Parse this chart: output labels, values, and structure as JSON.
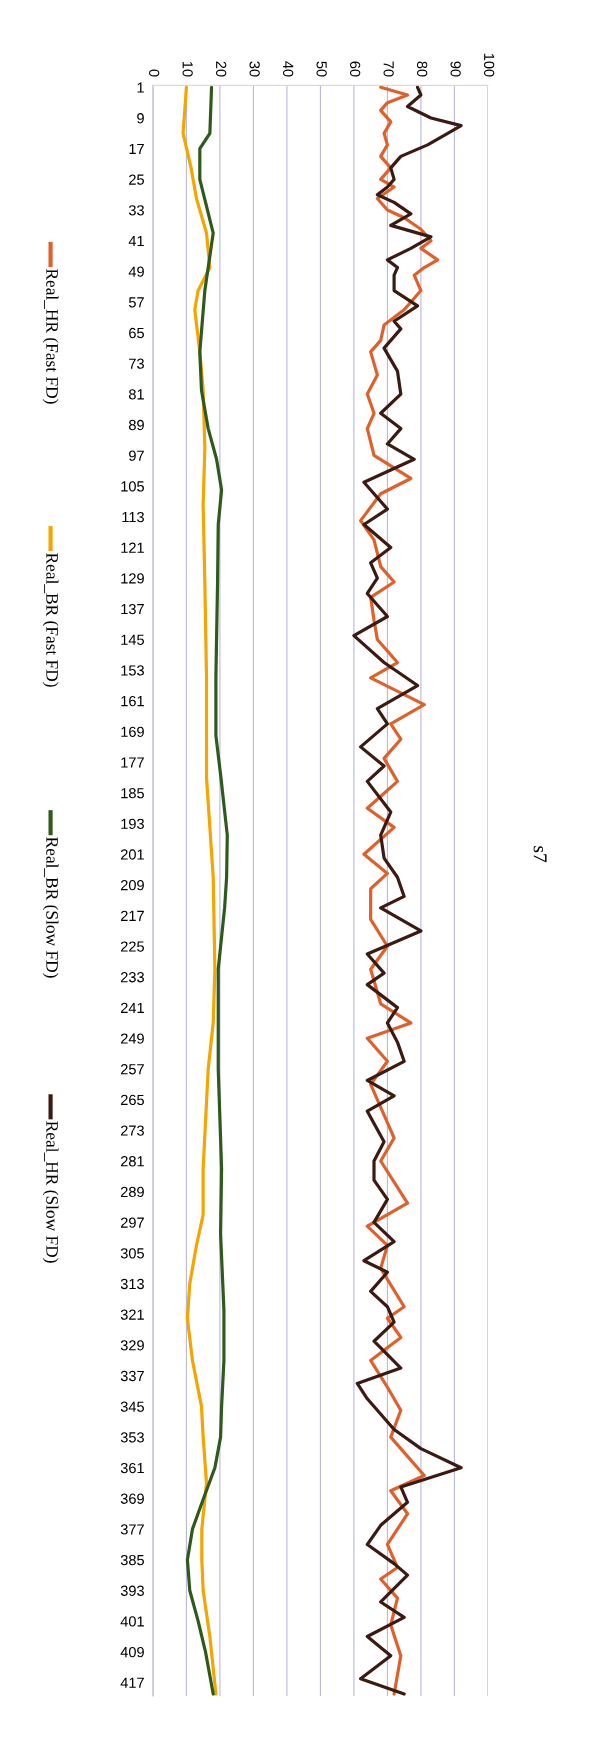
{
  "chart_data": {
    "type": "line",
    "title": "s7",
    "orientation": "horizontal",
    "ylim": [
      420.5,
      0.5
    ],
    "yticks": [
      1,
      9,
      17,
      25,
      33,
      41,
      49,
      57,
      65,
      73,
      81,
      89,
      97,
      105,
      113,
      121,
      129,
      137,
      145,
      153,
      161,
      169,
      177,
      185,
      193,
      201,
      209,
      217,
      225,
      233,
      241,
      249,
      257,
      265,
      273,
      281,
      289,
      297,
      305,
      313,
      321,
      329,
      337,
      345,
      353,
      361,
      369,
      377,
      385,
      393,
      401,
      409,
      417
    ],
    "xlim": [
      0,
      100
    ],
    "xticks": [
      0,
      10,
      20,
      30,
      40,
      50,
      60,
      70,
      80,
      90,
      100
    ],
    "grid": "x",
    "legend": "left",
    "series": [
      {
        "name": "Real_HR (Fast FD)",
        "color": "#e0602a",
        "x": [
          1,
          3,
          5,
          7,
          10,
          13,
          16,
          19,
          22,
          25,
          27,
          30,
          33,
          35,
          38,
          41,
          43,
          46,
          48,
          50,
          54,
          59,
          63,
          67,
          70,
          76,
          81,
          86,
          90,
          97,
          103,
          107,
          114,
          119,
          126,
          130,
          134,
          140,
          145,
          151,
          155,
          162,
          167,
          171,
          176,
          182,
          189,
          194,
          201,
          206,
          210,
          218,
          225,
          231,
          240,
          245,
          249,
          255,
          261,
          271,
          275,
          281,
          292,
          298,
          303,
          309,
          319,
          322,
          327,
          333,
          340,
          346,
          353,
          363,
          367,
          373,
          381,
          387,
          390,
          395,
          402,
          410,
          420
        ],
        "values": [
          68,
          76,
          70,
          68,
          71,
          69,
          70,
          68,
          71,
          68,
          72,
          67,
          70,
          75,
          80,
          83,
          80,
          85,
          81,
          78,
          80,
          75,
          69,
          68,
          65,
          67,
          64,
          66,
          64,
          66,
          77,
          68,
          62,
          66,
          68,
          72,
          65,
          66,
          67,
          73,
          65,
          81,
          71,
          74,
          69,
          73,
          64,
          72,
          63,
          70,
          65,
          65,
          70,
          65,
          68,
          77,
          64,
          70,
          65,
          70,
          72,
          68,
          76,
          64,
          70,
          68,
          75,
          70,
          74,
          65,
          70,
          74,
          71,
          81,
          71,
          76,
          70,
          73,
          68,
          73,
          71,
          74,
          72
        ]
      },
      {
        "name": "Real_BR (Fast FD)",
        "color": "#f5a500",
        "x": [
          1,
          13,
          22,
          30,
          39,
          48,
          54,
          59,
          70,
          80,
          95,
          110,
          130,
          155,
          181,
          207,
          231,
          245,
          257,
          283,
          295,
          303,
          313,
          322,
          333,
          345,
          353,
          365,
          377,
          385,
          393,
          405,
          420
        ],
        "values": [
          10,
          9,
          11.4,
          13,
          16,
          17,
          13.5,
          12.5,
          14,
          15,
          15.5,
          15,
          15.5,
          16,
          16,
          18,
          18.5,
          18,
          16.5,
          15,
          15,
          13,
          11,
          10.3,
          11.8,
          14.5,
          15,
          16,
          14.6,
          14.6,
          15,
          17,
          18.8
        ]
      },
      {
        "name": "Real_BR (Slow FD)",
        "color": "#2e5a1c",
        "x": [
          1,
          13,
          17,
          25,
          39,
          48,
          54,
          70,
          80,
          90,
          98,
          106,
          115,
          130,
          155,
          170,
          181,
          196,
          207,
          215,
          231,
          245,
          257,
          283,
          300,
          320,
          333,
          345,
          353,
          361,
          369,
          377,
          385,
          393,
          401,
          409,
          420
        ],
        "values": [
          17.5,
          17,
          14,
          14,
          18,
          16.5,
          15.5,
          14,
          14.5,
          16.5,
          19,
          20.5,
          19.5,
          19.3,
          18.8,
          18.8,
          20.3,
          22.2,
          22,
          21.4,
          19.5,
          19.5,
          19.5,
          20.5,
          20.2,
          21.2,
          21.2,
          20.5,
          20.2,
          18.5,
          15.1,
          11.8,
          10.3,
          11,
          13.5,
          15.7,
          18
        ]
      },
      {
        "name": "Real_HR (Slow FD)",
        "color": "#3b1a12",
        "x": [
          1,
          3,
          6,
          9,
          11,
          13,
          16,
          19,
          22,
          25,
          27,
          29,
          31,
          34,
          37,
          40,
          43,
          46,
          48,
          50,
          54,
          58,
          62,
          64,
          69,
          75,
          81,
          86,
          90,
          94,
          98,
          104,
          107,
          111,
          115,
          121,
          125,
          129,
          133,
          139,
          144,
          151,
          157,
          163,
          167,
          173,
          178,
          182,
          190,
          196,
          202,
          207,
          212,
          215,
          221,
          227,
          232,
          235,
          241,
          245,
          250,
          255,
          260,
          264,
          268,
          276,
          281,
          286,
          291,
          297,
          302,
          307,
          310,
          315,
          319,
          323,
          328,
          335,
          339,
          343,
          351,
          356,
          361,
          366,
          370,
          376,
          381,
          386,
          389,
          396,
          400,
          405,
          410,
          416,
          420
        ],
        "values": [
          79,
          80,
          76,
          83,
          92,
          88,
          82,
          74,
          71,
          72,
          70,
          67,
          72,
          77,
          71,
          83,
          77,
          70,
          73,
          72,
          72,
          79,
          72,
          74,
          69,
          73,
          74,
          68,
          74,
          70,
          78,
          63,
          66,
          70,
          63,
          71,
          65,
          67,
          64,
          70,
          60,
          69,
          79,
          67,
          70,
          62,
          69,
          64,
          71,
          68,
          69,
          73,
          75,
          68,
          80,
          64,
          69,
          64,
          73,
          70,
          73,
          75,
          64,
          72,
          64,
          69,
          66,
          66,
          70,
          66,
          72,
          63,
          70,
          65,
          70,
          72,
          66,
          74,
          61,
          64,
          72,
          80,
          92,
          74,
          76,
          68,
          64,
          72,
          76,
          68,
          75,
          64,
          71,
          62,
          75
        ]
      }
    ]
  }
}
